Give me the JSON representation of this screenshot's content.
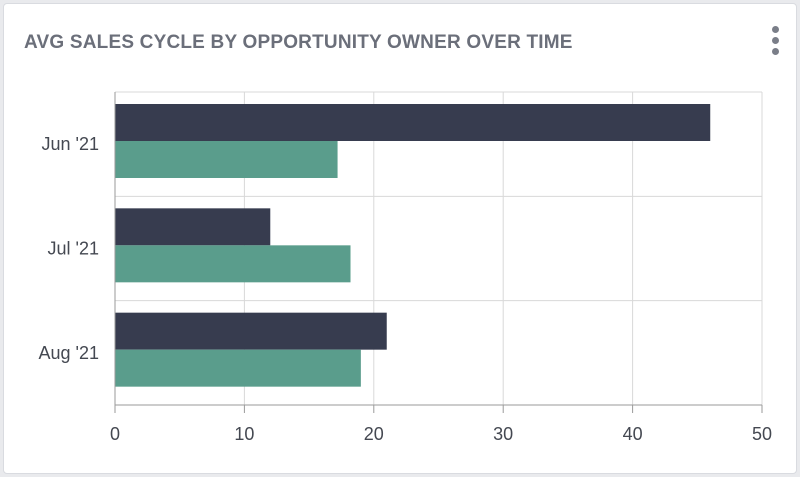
{
  "widget": {
    "title": "AVG SALES CYCLE BY OPPORTUNITY OWNER OVER TIME",
    "menu_icon": "vertical-ellipsis-icon"
  },
  "colors": {
    "series1": "#373c4f",
    "series2": "#5a9d8c",
    "grid": "#d8d8d8",
    "axis": "#9a9a9a"
  },
  "chart_data": {
    "type": "bar",
    "orientation": "horizontal",
    "categories": [
      "Jun '21",
      "Jul '21",
      "Aug '21"
    ],
    "series": [
      {
        "values": [
          46,
          12,
          21
        ]
      },
      {
        "values": [
          17.2,
          18.2,
          19
        ]
      }
    ],
    "xlim": [
      0,
      50
    ],
    "xticks": [
      0,
      10,
      20,
      30,
      40,
      50
    ],
    "grid": true
  }
}
